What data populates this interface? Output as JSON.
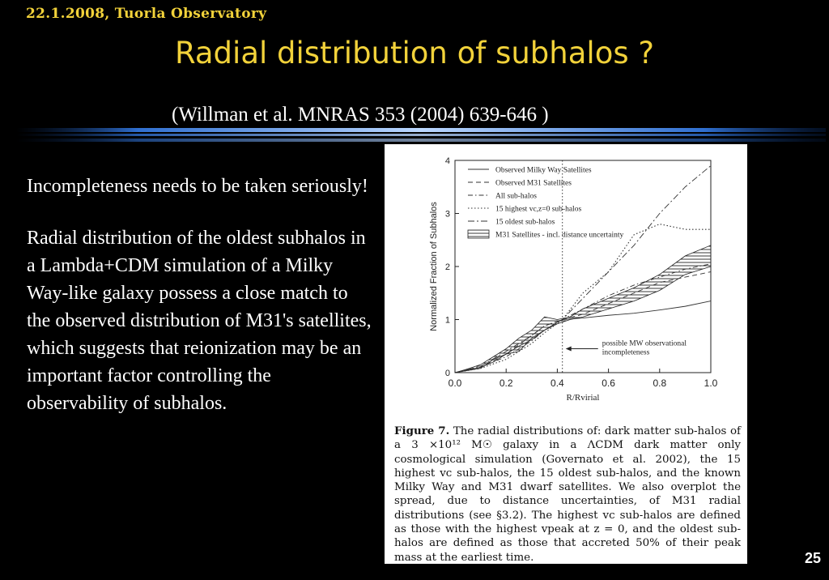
{
  "header": {
    "date_location": "22.1.2008, Tuorla Observatory"
  },
  "slide": {
    "title": "Radial distribution of subhalos ?",
    "citation": "(Willman et al. MNRAS 353 (2004) 639-646 )",
    "paragraph1": "Incompleteness needs to be taken seriously!",
    "paragraph2": "Radial distribution of the oldest subhalos in a Lambda+CDM simulation of a Milky Way-like galaxy possess a close match to the observed distribution of M31's satellites, which suggests that reionization may be an important factor controlling the observability of subhalos.",
    "page_number": "25"
  },
  "figure": {
    "caption_label": "Figure 7.",
    "caption_text": "The radial distributions of: dark matter sub-halos of a 3 ×10¹² M☉ galaxy in a ΛCDM dark matter only cosmological simulation (Governato et al. 2002), the 15 highest vc sub-halos, the 15 oldest sub-halos, and the known Milky Way and M31 dwarf satellites. We also overplot the spread, due to distance uncertainties, of M31 radial distributions (see §3.2). The highest vc sub-halos are defined as those with the highest vpeak at z = 0, and the oldest sub-halos are defined as those that accreted 50% of their peak mass at the earliest time."
  },
  "chart_data": {
    "type": "line",
    "xlabel": "R/Rvirial",
    "ylabel": "Normalized Fraction of Subhalos",
    "xlim": [
      0.0,
      1.0
    ],
    "ylim": [
      0,
      4
    ],
    "xticks": [
      "0.0",
      "0.2",
      "0.4",
      "0.6",
      "0.8",
      "1.0"
    ],
    "yticks": [
      "0",
      "1",
      "2",
      "3",
      "4"
    ],
    "legend_position": "top-left",
    "vline_x": 0.42,
    "annotation": "possible MW observational incompleteness",
    "band": {
      "name": "M31 Satellites - incl. distance uncertainty",
      "x": [
        0.0,
        0.05,
        0.1,
        0.15,
        0.2,
        0.25,
        0.3,
        0.35,
        0.4,
        0.45,
        0.5,
        0.6,
        0.7,
        0.8,
        0.9,
        1.0
      ],
      "lower": [
        0.0,
        0.04,
        0.08,
        0.25,
        0.35,
        0.4,
        0.65,
        0.8,
        0.92,
        1.0,
        1.05,
        1.2,
        1.35,
        1.55,
        1.85,
        2.0
      ],
      "upper": [
        0.0,
        0.07,
        0.15,
        0.3,
        0.45,
        0.65,
        0.8,
        1.05,
        1.0,
        1.05,
        1.2,
        1.4,
        1.6,
        1.85,
        2.2,
        2.4
      ]
    },
    "series": [
      {
        "name": "Observed Milky Way Satellites",
        "dash": "",
        "width": 0.9,
        "x": [
          0.0,
          0.05,
          0.1,
          0.15,
          0.2,
          0.25,
          0.3,
          0.35,
          0.4,
          0.42,
          0.5,
          0.6,
          0.7,
          0.8,
          0.9,
          1.0
        ],
        "y": [
          0.0,
          0.05,
          0.1,
          0.2,
          0.35,
          0.5,
          0.62,
          0.8,
          0.95,
          1.0,
          1.03,
          1.08,
          1.12,
          1.18,
          1.25,
          1.35
        ]
      },
      {
        "name": "Observed M31 Satellites",
        "dash": "6,4",
        "width": 0.9,
        "x": [
          0.0,
          0.1,
          0.2,
          0.3,
          0.35,
          0.42,
          0.5,
          0.6,
          0.7,
          0.8,
          0.9,
          1.0
        ],
        "y": [
          0.0,
          0.1,
          0.35,
          0.7,
          0.88,
          1.0,
          1.1,
          1.3,
          1.5,
          1.7,
          1.8,
          1.9
        ]
      },
      {
        "name": "All sub-halos",
        "dash": "6,3,1.5,3",
        "width": 0.9,
        "x": [
          0.0,
          0.1,
          0.2,
          0.3,
          0.35,
          0.42,
          0.5,
          0.6,
          0.7,
          0.8,
          0.9,
          1.0
        ],
        "y": [
          0.0,
          0.1,
          0.3,
          0.6,
          0.8,
          1.0,
          1.2,
          1.45,
          1.65,
          1.8,
          1.95,
          2.05
        ]
      },
      {
        "name": "15 highest vc,z=0 sub-halos",
        "dash": "1.5,2.5",
        "width": 1.1,
        "x": [
          0.0,
          0.1,
          0.2,
          0.3,
          0.35,
          0.42,
          0.5,
          0.6,
          0.7,
          0.8,
          0.9,
          1.0
        ],
        "y": [
          0.0,
          0.08,
          0.25,
          0.55,
          0.75,
          1.0,
          1.5,
          1.9,
          2.6,
          2.8,
          2.7,
          2.7
        ]
      },
      {
        "name": "15 oldest sub-halos",
        "dash": "8,3,2,3",
        "width": 0.9,
        "x": [
          0.0,
          0.1,
          0.2,
          0.3,
          0.35,
          0.42,
          0.5,
          0.6,
          0.7,
          0.8,
          0.9,
          1.0
        ],
        "y": [
          0.0,
          0.12,
          0.4,
          0.7,
          0.88,
          1.0,
          1.4,
          1.9,
          2.4,
          3.0,
          3.5,
          3.9
        ]
      }
    ]
  }
}
